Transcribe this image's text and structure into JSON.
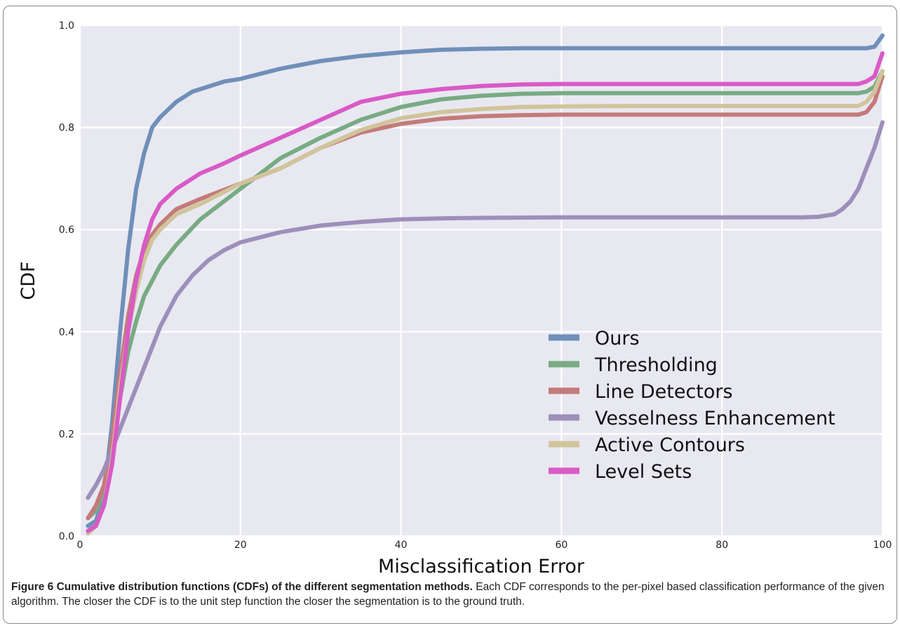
{
  "chart_data": {
    "type": "line",
    "xlabel": "Misclassification Error",
    "ylabel": "CDF",
    "xlim": [
      0,
      100
    ],
    "ylim": [
      0,
      1.0
    ],
    "xticks": [
      0,
      20,
      40,
      60,
      80,
      100
    ],
    "yticks": [
      0.0,
      0.2,
      0.4,
      0.6,
      0.8,
      1.0
    ],
    "ytick_labels": [
      "0.0",
      "0.2",
      "0.4",
      "0.6",
      "0.8",
      "1.0"
    ],
    "grid": true,
    "legend_position": "lower-right",
    "background": "#e8e8f1",
    "series": [
      {
        "name": "Ours",
        "color": "#6f8fb9",
        "x": [
          1,
          2,
          3,
          4,
          5,
          6,
          7,
          8,
          9,
          10,
          12,
          14,
          16,
          18,
          20,
          25,
          30,
          35,
          40,
          45,
          50,
          55,
          60,
          70,
          80,
          90,
          95,
          98,
          99,
          100
        ],
        "y": [
          0.02,
          0.03,
          0.08,
          0.22,
          0.4,
          0.56,
          0.68,
          0.75,
          0.8,
          0.82,
          0.85,
          0.87,
          0.88,
          0.89,
          0.895,
          0.915,
          0.93,
          0.94,
          0.947,
          0.952,
          0.954,
          0.955,
          0.955,
          0.955,
          0.955,
          0.955,
          0.955,
          0.955,
          0.958,
          0.98
        ]
      },
      {
        "name": "Thresholding",
        "color": "#78ab83",
        "x": [
          1,
          2,
          3,
          4,
          5,
          6,
          7,
          8,
          9,
          10,
          12,
          15,
          20,
          25,
          30,
          35,
          40,
          45,
          50,
          55,
          60,
          70,
          80,
          90,
          95,
          97,
          98,
          99,
          100
        ],
        "y": [
          0.035,
          0.05,
          0.09,
          0.17,
          0.27,
          0.36,
          0.42,
          0.47,
          0.5,
          0.53,
          0.57,
          0.62,
          0.68,
          0.74,
          0.78,
          0.815,
          0.84,
          0.855,
          0.862,
          0.866,
          0.867,
          0.867,
          0.867,
          0.867,
          0.867,
          0.867,
          0.87,
          0.88,
          0.91
        ]
      },
      {
        "name": "Line Detectors",
        "color": "#c47a7a",
        "x": [
          1,
          2,
          3,
          4,
          5,
          6,
          7,
          8,
          9,
          10,
          12,
          15,
          20,
          25,
          30,
          35,
          40,
          45,
          50,
          55,
          60,
          70,
          80,
          90,
          95,
          97,
          98,
          99,
          100
        ],
        "y": [
          0.035,
          0.06,
          0.1,
          0.19,
          0.32,
          0.43,
          0.51,
          0.56,
          0.59,
          0.61,
          0.64,
          0.66,
          0.69,
          0.72,
          0.76,
          0.79,
          0.807,
          0.817,
          0.822,
          0.824,
          0.825,
          0.825,
          0.825,
          0.825,
          0.825,
          0.825,
          0.83,
          0.85,
          0.9
        ]
      },
      {
        "name": "Vesselness Enhancement",
        "color": "#9d8fba",
        "x": [
          1,
          2,
          3,
          4,
          5,
          6,
          7,
          8,
          9,
          10,
          12,
          14,
          16,
          18,
          20,
          25,
          30,
          35,
          40,
          45,
          50,
          60,
          70,
          80,
          90,
          92,
          94,
          95,
          96,
          97,
          98,
          99,
          100
        ],
        "y": [
          0.075,
          0.1,
          0.13,
          0.17,
          0.21,
          0.25,
          0.29,
          0.33,
          0.37,
          0.41,
          0.47,
          0.51,
          0.54,
          0.56,
          0.575,
          0.595,
          0.608,
          0.615,
          0.62,
          0.622,
          0.623,
          0.624,
          0.624,
          0.624,
          0.624,
          0.625,
          0.63,
          0.64,
          0.655,
          0.68,
          0.72,
          0.76,
          0.81
        ]
      },
      {
        "name": "Active Contours",
        "color": "#d1c49b",
        "x": [
          1,
          2,
          3,
          4,
          5,
          6,
          7,
          8,
          9,
          10,
          12,
          15,
          20,
          25,
          30,
          35,
          40,
          45,
          50,
          55,
          60,
          70,
          80,
          90,
          95,
          97,
          98,
          99,
          100
        ],
        "y": [
          0.005,
          0.02,
          0.06,
          0.15,
          0.29,
          0.4,
          0.48,
          0.54,
          0.58,
          0.6,
          0.63,
          0.65,
          0.69,
          0.72,
          0.76,
          0.795,
          0.818,
          0.83,
          0.836,
          0.84,
          0.841,
          0.842,
          0.842,
          0.842,
          0.842,
          0.842,
          0.85,
          0.87,
          0.91
        ]
      },
      {
        "name": "Level Sets",
        "color": "#d95ac6",
        "x": [
          1,
          2,
          3,
          4,
          5,
          6,
          7,
          8,
          9,
          10,
          12,
          15,
          18,
          20,
          25,
          30,
          35,
          40,
          45,
          50,
          55,
          60,
          70,
          80,
          90,
          95,
          97,
          98,
          99,
          100
        ],
        "y": [
          0.01,
          0.02,
          0.06,
          0.14,
          0.27,
          0.4,
          0.5,
          0.57,
          0.62,
          0.65,
          0.68,
          0.71,
          0.73,
          0.745,
          0.78,
          0.815,
          0.85,
          0.866,
          0.875,
          0.881,
          0.884,
          0.885,
          0.885,
          0.885,
          0.885,
          0.885,
          0.885,
          0.89,
          0.9,
          0.945
        ]
      }
    ]
  },
  "caption": {
    "label": "Figure 6 Cumulative distribution functions (CDFs) of the different segmentation methods.",
    "text": " Each CDF corresponds to the per-pixel based classification performance of the given algorithm. The closer the CDF is to the unit step function the closer the segmentation is to the ground truth."
  }
}
